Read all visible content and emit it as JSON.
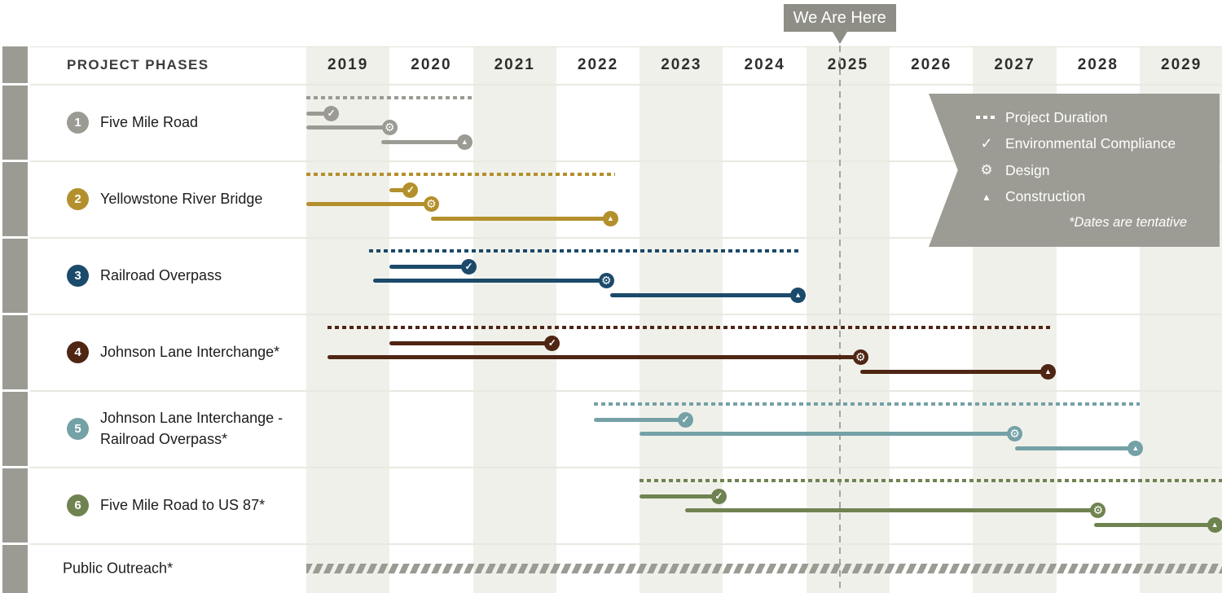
{
  "page_title": "Project Phases Timeline",
  "header": {
    "phases_label": "PROJECT PHASES",
    "years": [
      "2019",
      "2020",
      "2021",
      "2022",
      "2023",
      "2024",
      "2025",
      "2026",
      "2027",
      "2028",
      "2029"
    ]
  },
  "we_are_here": {
    "label": "We Are Here",
    "year": 2025.4
  },
  "legend": {
    "items": [
      {
        "icon": "dotted-line-icon",
        "label": "Project Duration"
      },
      {
        "icon": "check-icon",
        "label": "Environmental Compliance"
      },
      {
        "icon": "gear-icon",
        "label": "Design"
      },
      {
        "icon": "cone-icon",
        "label": "Construction"
      }
    ],
    "note": "*Dates are tentative"
  },
  "chart_data": {
    "type": "gantt",
    "x_axis": {
      "ticks": [
        2019,
        2020,
        2021,
        2022,
        2023,
        2024,
        2025,
        2026,
        2027,
        2028,
        2029
      ],
      "range": [
        2019,
        2030
      ]
    },
    "marker": {
      "label": "We Are Here",
      "year": 2025.4
    },
    "shaded_year_columns": [
      2019,
      2021,
      2023,
      2025,
      2027,
      2029
    ],
    "stripe_color": "#f0f0ea",
    "projects": [
      {
        "number": "1",
        "name": "Five Mile Road",
        "color": "#9b9b94",
        "project_duration": [
          2019.0,
          2021.0
        ],
        "environmental_compliance": [
          2019.0,
          2019.3
        ],
        "design": [
          2019.0,
          2020.0
        ],
        "construction": [
          2019.9,
          2020.9
        ]
      },
      {
        "number": "2",
        "name": "Yellowstone River Bridge",
        "color": "#b3902c",
        "project_duration": [
          2019.0,
          2022.7
        ],
        "environmental_compliance": [
          2020.0,
          2020.25
        ],
        "design": [
          2019.0,
          2020.5
        ],
        "construction": [
          2020.5,
          2022.65
        ]
      },
      {
        "number": "3",
        "name": "Railroad Overpass",
        "color": "#1b4a6b",
        "project_duration": [
          2019.75,
          2024.9
        ],
        "environmental_compliance": [
          2020.0,
          2020.95
        ],
        "design": [
          2019.8,
          2022.6
        ],
        "construction": [
          2022.65,
          2024.9
        ]
      },
      {
        "number": "4",
        "name": "Johnson Lane Interchange*",
        "color": "#4f2513",
        "project_duration": [
          2019.25,
          2027.95
        ],
        "environmental_compliance": [
          2020.0,
          2021.95
        ],
        "design": [
          2019.25,
          2025.65
        ],
        "construction": [
          2025.65,
          2027.9
        ]
      },
      {
        "number": "5",
        "name": "Johnson Lane Interchange -\nRailroad Overpass*",
        "color": "#74a1a6",
        "project_duration": [
          2022.45,
          2029.0
        ],
        "environmental_compliance": [
          2022.45,
          2023.55
        ],
        "design": [
          2023.0,
          2027.5
        ],
        "construction": [
          2027.5,
          2028.95
        ]
      },
      {
        "number": "6",
        "name": "Five Mile Road to US 87*",
        "color": "#6f8351",
        "project_duration": [
          2023.0,
          2030.0
        ],
        "environmental_compliance": [
          2023.0,
          2023.95
        ],
        "design": [
          2023.55,
          2028.5
        ],
        "construction": [
          2028.45,
          2029.9
        ]
      }
    ],
    "public_outreach": {
      "name": "Public Outreach*",
      "range": [
        2019.0,
        2030.0
      ],
      "style": "hatched",
      "color": "#9b9b94"
    }
  },
  "colors": {
    "banner_gray": "#9c9c94",
    "marker_gray": "#8e8e86",
    "accent_strip": "#9b9b94",
    "stripe": "#f0f0ea",
    "divider": "#e9e9e1"
  }
}
